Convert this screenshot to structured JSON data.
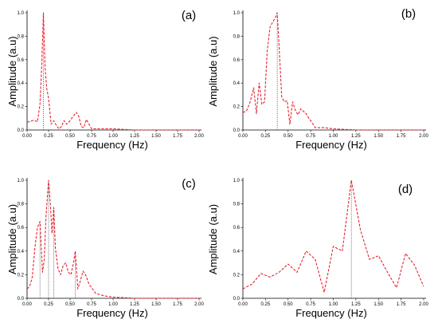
{
  "chart_data": [
    {
      "type": "line",
      "label": "(a)",
      "xlabel": "Frequency (Hz)",
      "ylabel": "Amplitude (a.u)",
      "xlim": [
        0,
        2
      ],
      "ylim": [
        0,
        1
      ],
      "xticks": [
        "0.00",
        "0.25",
        "0.50",
        "0.75",
        "1.00",
        "1.25",
        "1.50",
        "1.75",
        "2.00"
      ],
      "yticks": [
        "0.0",
        "0.2",
        "0.4",
        "0.6",
        "0.8",
        "1.0"
      ],
      "peak_markers": [
        0.19
      ],
      "series": [
        {
          "color": "#e8222e",
          "x": [
            0.0,
            0.03,
            0.06,
            0.09,
            0.12,
            0.15,
            0.17,
            0.19,
            0.21,
            0.23,
            0.25,
            0.28,
            0.31,
            0.34,
            0.37,
            0.4,
            0.43,
            0.46,
            0.49,
            0.53,
            0.57,
            0.6,
            0.63,
            0.66,
            0.69,
            0.72,
            0.75,
            0.8,
            0.9,
            1.0,
            1.25,
            1.5,
            1.75,
            2.0
          ],
          "y": [
            0.07,
            0.07,
            0.08,
            0.08,
            0.07,
            0.22,
            0.55,
            1.0,
            0.52,
            0.35,
            0.27,
            0.05,
            0.08,
            0.04,
            0.01,
            0.03,
            0.08,
            0.05,
            0.07,
            0.11,
            0.15,
            0.12,
            0.03,
            0.02,
            0.09,
            0.05,
            0.01,
            0.01,
            0.01,
            0.01,
            0.0,
            0.0,
            0.0,
            0.0
          ]
        }
      ]
    },
    {
      "type": "line",
      "label": "(b)",
      "xlabel": "Frequency (Hz)",
      "ylabel": "Amplitude (a.u)",
      "xlim": [
        0,
        2
      ],
      "ylim": [
        0,
        1
      ],
      "xticks": [
        "0.00",
        "0.25",
        "0.50",
        "0.75",
        "1.00",
        "1.25",
        "1.50",
        "1.75",
        "2.00"
      ],
      "yticks": [
        "0.0",
        "0.2",
        "0.4",
        "0.6",
        "0.8",
        "1.0"
      ],
      "peak_markers": [
        0.38
      ],
      "series": [
        {
          "color": "#e8222e",
          "x": [
            0.0,
            0.04,
            0.08,
            0.12,
            0.15,
            0.18,
            0.21,
            0.24,
            0.27,
            0.3,
            0.33,
            0.36,
            0.38,
            0.4,
            0.43,
            0.46,
            0.49,
            0.52,
            0.55,
            0.58,
            0.61,
            0.64,
            0.67,
            0.7,
            0.73,
            0.76,
            0.8,
            0.85,
            0.9,
            1.0,
            1.25,
            1.5,
            1.75,
            2.0
          ],
          "y": [
            0.15,
            0.16,
            0.24,
            0.36,
            0.14,
            0.4,
            0.22,
            0.24,
            0.68,
            0.88,
            0.92,
            0.96,
            1.0,
            0.72,
            0.28,
            0.24,
            0.25,
            0.05,
            0.24,
            0.17,
            0.13,
            0.18,
            0.16,
            0.14,
            0.1,
            0.07,
            0.02,
            0.02,
            0.02,
            0.01,
            0.0,
            0.0,
            0.0,
            0.0
          ]
        }
      ]
    },
    {
      "type": "line",
      "label": "(c)",
      "xlabel": "Frequency (Hz)",
      "ylabel": "Amplitude (a.u)",
      "xlim": [
        0,
        2
      ],
      "ylim": [
        0,
        1
      ],
      "xticks": [
        "0.00",
        "0.25",
        "0.50",
        "0.75",
        "1.00",
        "1.25",
        "1.50",
        "1.75",
        "2.00"
      ],
      "yticks": [
        "0.0",
        "0.2",
        "0.4",
        "0.6",
        "0.8",
        "1.0"
      ],
      "peak_markers": [
        0.15,
        0.25,
        0.31,
        0.56
      ],
      "series": [
        {
          "color": "#e8222e",
          "x": [
            0.0,
            0.03,
            0.06,
            0.09,
            0.12,
            0.15,
            0.18,
            0.2,
            0.22,
            0.25,
            0.27,
            0.29,
            0.31,
            0.33,
            0.36,
            0.39,
            0.42,
            0.45,
            0.48,
            0.51,
            0.54,
            0.56,
            0.59,
            0.62,
            0.65,
            0.68,
            0.72,
            0.8,
            0.9,
            1.0,
            1.25,
            1.5,
            1.75,
            2.0
          ],
          "y": [
            0.08,
            0.1,
            0.18,
            0.42,
            0.6,
            0.65,
            0.22,
            0.33,
            0.7,
            1.0,
            0.8,
            0.55,
            0.77,
            0.42,
            0.25,
            0.2,
            0.28,
            0.3,
            0.22,
            0.2,
            0.3,
            0.4,
            0.08,
            0.15,
            0.23,
            0.2,
            0.12,
            0.04,
            0.02,
            0.01,
            0.0,
            0.0,
            0.0,
            0.0
          ]
        }
      ]
    },
    {
      "type": "line",
      "label": "(d)",
      "xlabel": "Frequency (Hz)",
      "ylabel": "Amplitude (a.u)",
      "xlim": [
        0,
        2
      ],
      "ylim": [
        0,
        1
      ],
      "xticks": [
        "0.00",
        "0.25",
        "0.50",
        "0.75",
        "1.00",
        "1.25",
        "1.50",
        "1.75",
        "2.00"
      ],
      "yticks": [
        "0.0",
        "0.2",
        "0.4",
        "0.6",
        "0.8",
        "1.0"
      ],
      "peak_markers": [
        1.2
      ],
      "series": [
        {
          "color": "#e8222e",
          "x": [
            0.0,
            0.1,
            0.2,
            0.3,
            0.4,
            0.5,
            0.6,
            0.7,
            0.8,
            0.9,
            1.0,
            1.1,
            1.2,
            1.3,
            1.4,
            1.5,
            1.6,
            1.7,
            1.8,
            1.9,
            2.0
          ],
          "y": [
            0.08,
            0.12,
            0.21,
            0.18,
            0.22,
            0.29,
            0.22,
            0.4,
            0.33,
            0.05,
            0.44,
            0.4,
            1.0,
            0.58,
            0.33,
            0.36,
            0.22,
            0.09,
            0.38,
            0.28,
            0.1
          ]
        }
      ]
    }
  ]
}
